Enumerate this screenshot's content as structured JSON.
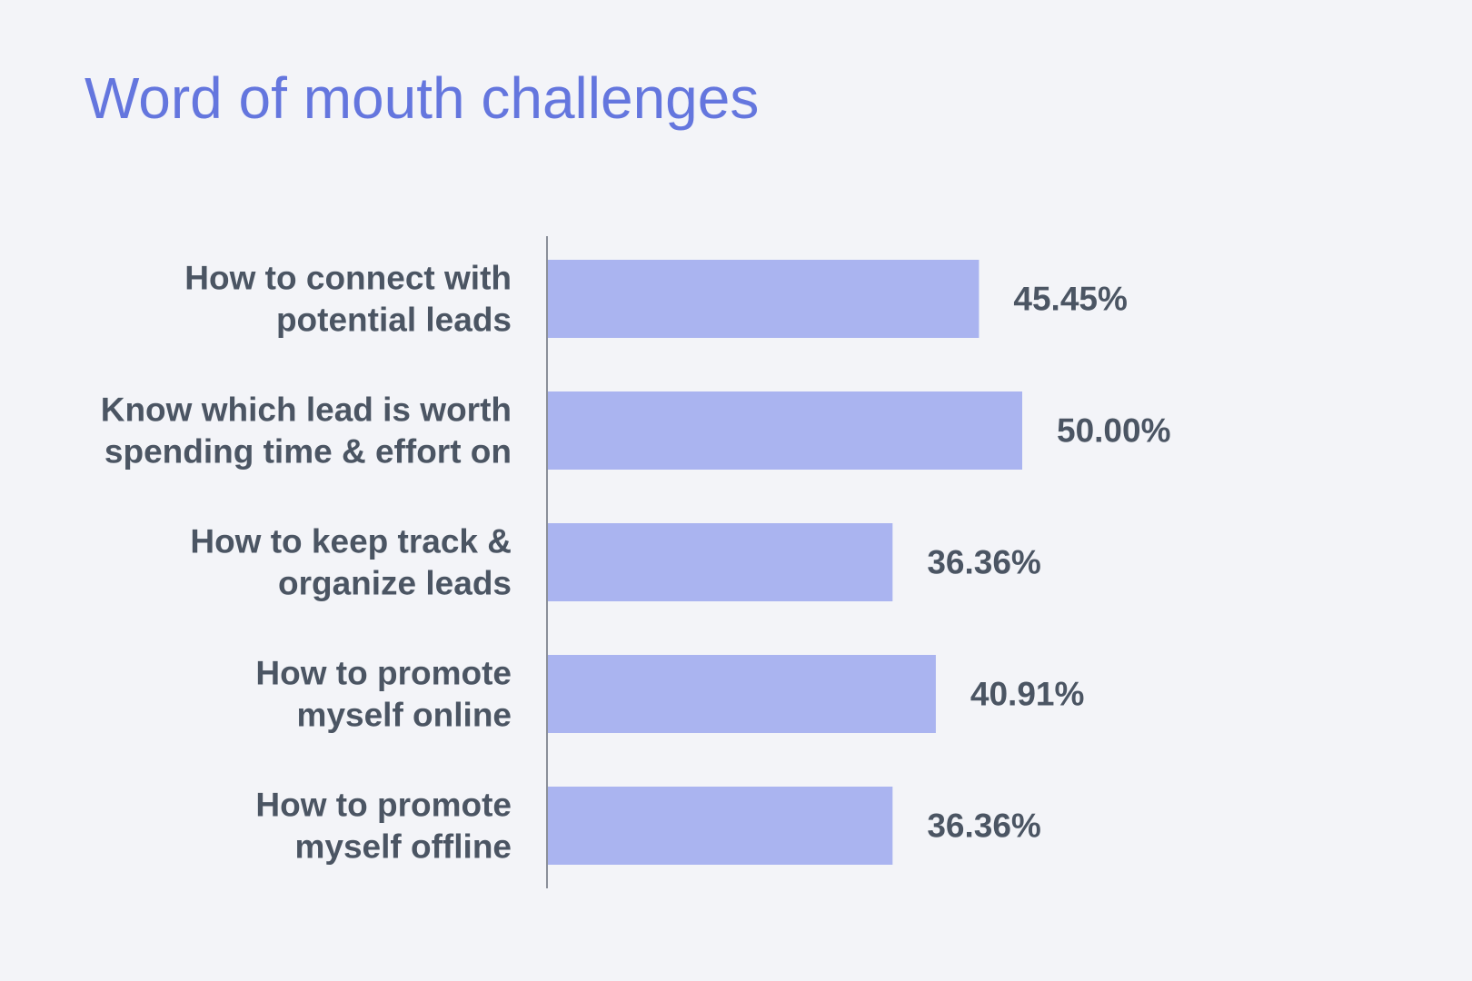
{
  "colors": {
    "background": "#f3f4f8",
    "title": "#6476de",
    "bar": "#aab4f0",
    "text": "#4b5563",
    "axis": "#8a8f99"
  },
  "chart_data": {
    "type": "bar",
    "orientation": "horizontal",
    "title": "Word of mouth challenges",
    "xlabel": "",
    "ylabel": "",
    "xlim": [
      0,
      50
    ],
    "grid": false,
    "legend": "none",
    "categories": [
      [
        "How to connect with",
        "potential leads"
      ],
      [
        "Know which lead is worth",
        "spending time & effort on"
      ],
      [
        "How to keep track &",
        "organize leads"
      ],
      [
        "How to promote",
        "myself online"
      ],
      [
        "How to promote",
        "myself offline"
      ]
    ],
    "values": [
      45.45,
      50.0,
      36.36,
      40.91,
      36.36
    ],
    "value_labels": [
      "45.45%",
      "50.00%",
      "36.36%",
      "40.91%",
      "36.36%"
    ]
  }
}
